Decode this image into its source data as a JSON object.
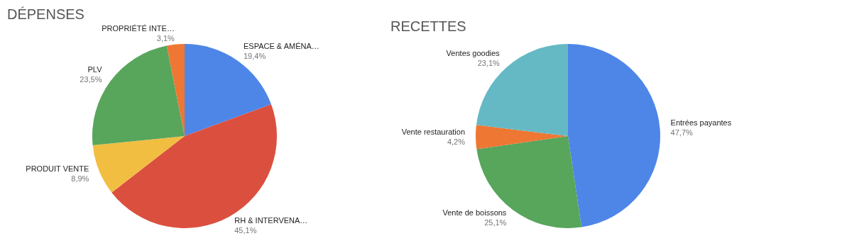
{
  "chart_data": [
    {
      "type": "pie",
      "title": "DÉPENSES",
      "categories": [
        "ESPACE & AMÉNA…",
        "RH & INTERVENA…",
        "PRODUIT VENTE",
        "PLV",
        "PROPRIÉTÉ INTE…"
      ],
      "values": [
        19.4,
        45.1,
        8.9,
        23.5,
        3.1
      ],
      "colors": [
        "#4e86e8",
        "#db4f3e",
        "#f1be42",
        "#58a55c",
        "#ee7733"
      ],
      "value_labels": [
        "19,4%",
        "45,1%",
        "8,9%",
        "23,5%",
        "3,1%"
      ]
    },
    {
      "type": "pie",
      "title": "RECETTES",
      "categories": [
        "Entrées payantes",
        "Vente de boissons",
        "Vente restauration",
        "Ventes goodies"
      ],
      "values": [
        47.7,
        25.1,
        4.2,
        23.1
      ],
      "colors": [
        "#4e86e8",
        "#58a55c",
        "#ee7733",
        "#65b9c4"
      ],
      "value_labels": [
        "47,7%",
        "25,1%",
        "4,2%",
        "23,1%"
      ]
    }
  ]
}
